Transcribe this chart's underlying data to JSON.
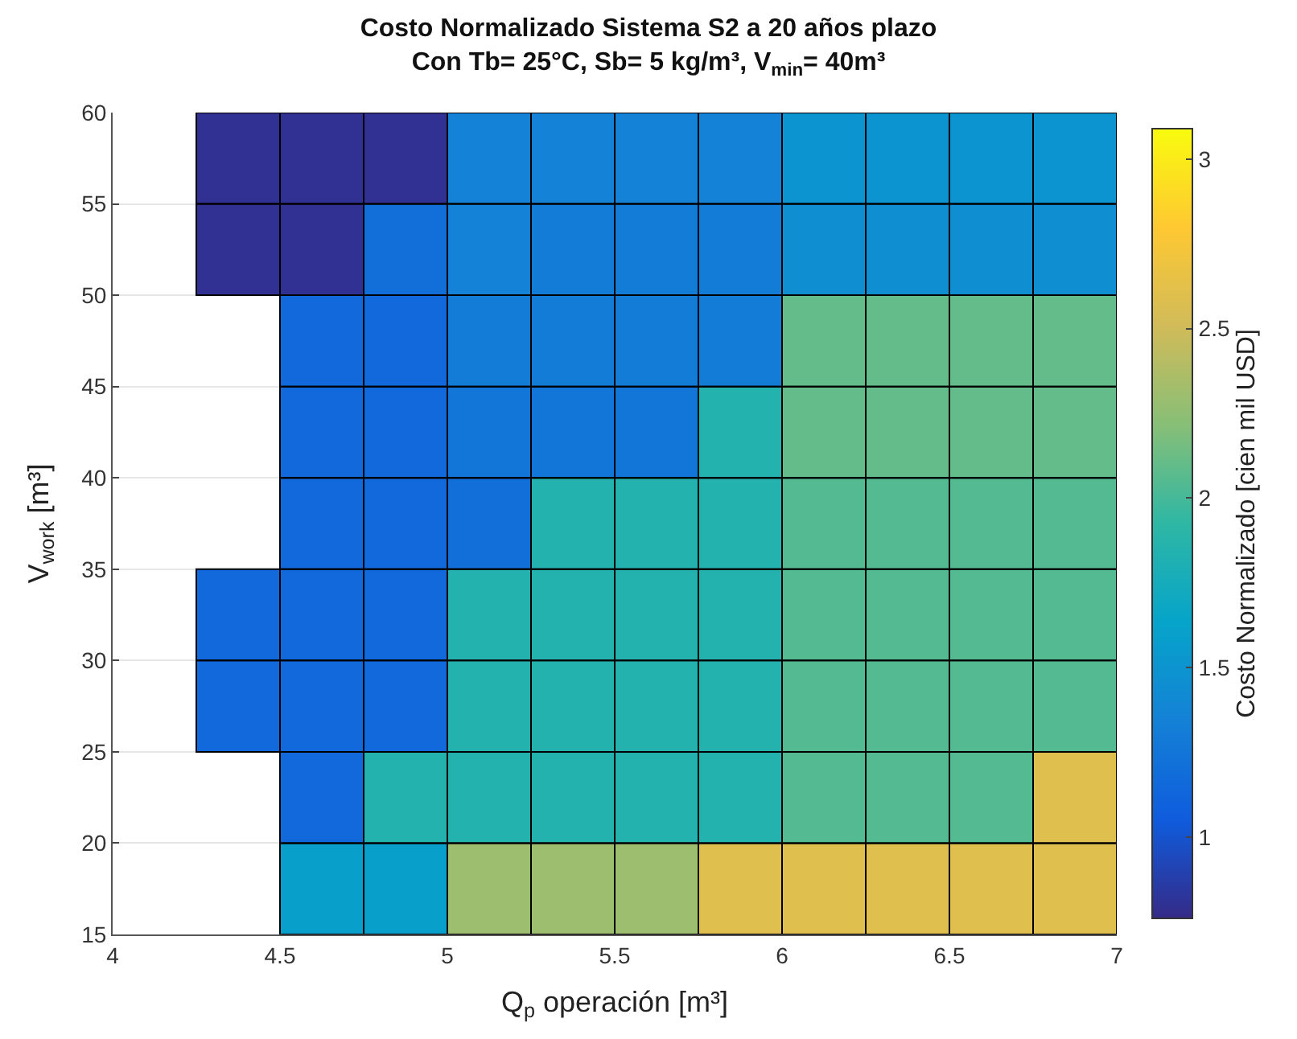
{
  "chart_data": {
    "type": "heatmap",
    "title": "Costo Normalizado Sistema S2 a 20 años plazo",
    "subtitle": "Con Tb= 25°C, Sb= 5 kg/m³, V$_{min}$= 40m³",
    "xlabel": "Q$_{p}$ operación [m³]",
    "ylabel": "V$_{work}$ [m³]",
    "clabel": "Costo Normalizado [cien mil USD]",
    "x": [
      4.375,
      4.625,
      4.875,
      5.125,
      5.375,
      5.625,
      5.875,
      6.125,
      6.375,
      6.625,
      6.875
    ],
    "y": [
      57.5,
      52.5,
      47.5,
      42.5,
      37.5,
      32.5,
      27.5,
      22.5,
      17.5
    ],
    "cells": [
      [
        0.8,
        0.8,
        0.8,
        1.35,
        1.35,
        1.35,
        1.35,
        1.5,
        1.5,
        1.5,
        1.5
      ],
      [
        0.8,
        0.8,
        1.2,
        1.35,
        1.3,
        1.3,
        1.3,
        1.45,
        1.45,
        1.45,
        1.45
      ],
      [
        null,
        1.15,
        1.15,
        1.3,
        1.3,
        1.3,
        1.3,
        2.1,
        2.1,
        2.1,
        2.1
      ],
      [
        null,
        1.15,
        1.15,
        1.25,
        1.25,
        1.25,
        1.85,
        2.1,
        2.1,
        2.1,
        2.1
      ],
      [
        null,
        1.15,
        1.15,
        1.2,
        1.85,
        1.85,
        1.85,
        2.05,
        2.05,
        2.05,
        2.05
      ],
      [
        1.15,
        1.15,
        1.15,
        1.85,
        1.85,
        1.85,
        1.85,
        2.05,
        2.05,
        2.05,
        2.05
      ],
      [
        1.15,
        1.15,
        1.15,
        1.85,
        1.85,
        1.85,
        1.85,
        2.05,
        2.05,
        2.05,
        2.05
      ],
      [
        null,
        1.15,
        1.85,
        1.85,
        1.85,
        1.85,
        1.85,
        2.05,
        2.05,
        2.05,
        2.6
      ],
      [
        null,
        1.6,
        1.6,
        2.3,
        2.3,
        2.3,
        2.6,
        2.6,
        2.6,
        2.6,
        2.6
      ]
    ],
    "xlim": [
      4,
      7
    ],
    "xticks": [
      4,
      4.5,
      5,
      5.5,
      6,
      6.5,
      7
    ],
    "ylim": [
      15,
      60
    ],
    "yticks": [
      15,
      20,
      25,
      30,
      35,
      40,
      45,
      50,
      55,
      60
    ],
    "clim": [
      0.76,
      3.09
    ],
    "cticks": [
      1,
      1.5,
      2,
      2.5,
      3
    ],
    "grid": "y"
  }
}
